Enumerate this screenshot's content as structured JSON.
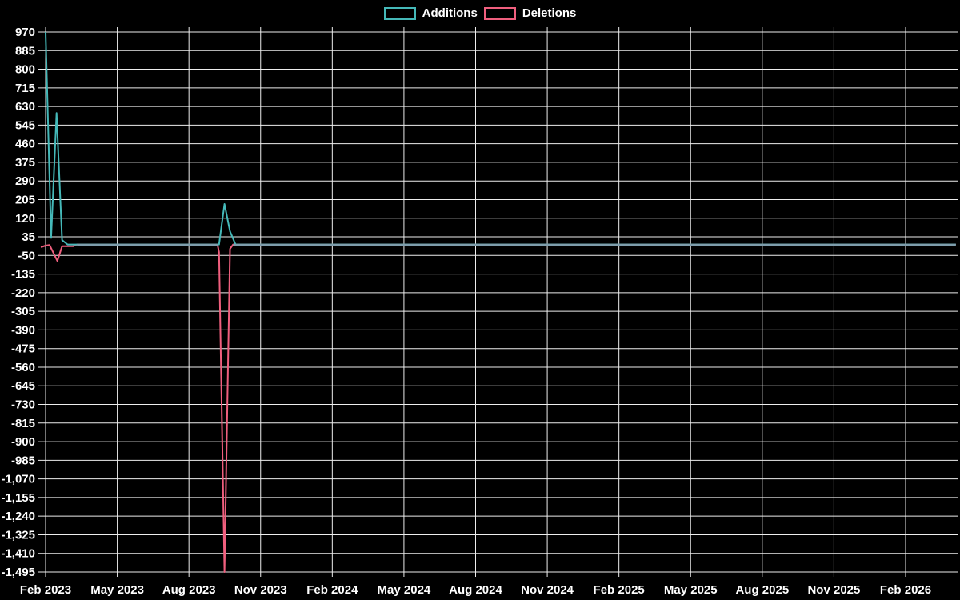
{
  "colors": {
    "background": "#000000",
    "text": "#ffffff",
    "grid": "#ededed",
    "additions": "#45b9b9",
    "deletions": "#f05f7e",
    "overlap_line": "#7e9dac"
  },
  "chart_data": {
    "type": "line",
    "title": "",
    "legend_position": "top-center",
    "grid": true,
    "x_axis": {
      "type": "time",
      "tick_labels": [
        "Feb 2023",
        "May 2023",
        "Aug 2023",
        "Nov 2023",
        "Feb 2024",
        "May 2024",
        "Aug 2024",
        "Nov 2024",
        "Feb 2025",
        "May 2025",
        "Aug 2025",
        "Nov 2025",
        "Feb 2026"
      ]
    },
    "y_axis": {
      "min": -1495,
      "max": 970,
      "step": 85,
      "ticks": [
        {
          "value": 970,
          "label": "970"
        },
        {
          "value": 885,
          "label": "885"
        },
        {
          "value": 800,
          "label": "800"
        },
        {
          "value": 715,
          "label": "715"
        },
        {
          "value": 630,
          "label": "630"
        },
        {
          "value": 545,
          "label": "545"
        },
        {
          "value": 460,
          "label": "460"
        },
        {
          "value": 375,
          "label": "375"
        },
        {
          "value": 290,
          "label": "290"
        },
        {
          "value": 205,
          "label": "205"
        },
        {
          "value": 120,
          "label": "120"
        },
        {
          "value": 35,
          "label": "35"
        },
        {
          "value": -50,
          "label": "-50"
        },
        {
          "value": -135,
          "label": "-135"
        },
        {
          "value": -220,
          "label": "-220"
        },
        {
          "value": -305,
          "label": "-305"
        },
        {
          "value": -390,
          "label": "-390"
        },
        {
          "value": -475,
          "label": "-475"
        },
        {
          "value": -560,
          "label": "-560"
        },
        {
          "value": -645,
          "label": "-645"
        },
        {
          "value": -730,
          "label": "-730"
        },
        {
          "value": -815,
          "label": "-815"
        },
        {
          "value": -900,
          "label": "-900"
        },
        {
          "value": -985,
          "label": "-985"
        },
        {
          "value": -1070,
          "label": "-1,070"
        },
        {
          "value": -1155,
          "label": "-1,155"
        },
        {
          "value": -1240,
          "label": "-1,240"
        },
        {
          "value": -1325,
          "label": "-1,325"
        },
        {
          "value": -1410,
          "label": "-1,410"
        },
        {
          "value": -1495,
          "label": "-1,495"
        }
      ]
    },
    "series": [
      {
        "name": "Additions",
        "color": "#45b9b9",
        "points": [
          [
            "2023-02-01",
            970
          ],
          [
            "2023-02-08",
            30
          ],
          [
            "2023-02-15",
            600
          ],
          [
            "2023-02-22",
            20
          ],
          [
            "2023-03-01",
            0
          ],
          [
            "2023-09-10",
            0
          ],
          [
            "2023-09-17",
            185
          ],
          [
            "2023-09-24",
            60
          ],
          [
            "2023-10-01",
            0
          ],
          [
            "2026-04-06",
            0
          ]
        ]
      },
      {
        "name": "Deletions",
        "color": "#f05f7e",
        "points": [
          [
            "2023-01-26",
            -12
          ],
          [
            "2023-02-01",
            -5
          ],
          [
            "2023-02-06",
            -2
          ],
          [
            "2023-02-16",
            -75
          ],
          [
            "2023-02-22",
            -8
          ],
          [
            "2023-03-08",
            -8
          ],
          [
            "2023-03-13",
            0
          ],
          [
            "2023-09-08",
            0
          ],
          [
            "2023-09-10",
            -35
          ],
          [
            "2023-09-17",
            -1495
          ],
          [
            "2023-09-24",
            -20
          ],
          [
            "2023-09-28",
            0
          ],
          [
            "2026-04-06",
            0
          ]
        ]
      }
    ],
    "overlap_zero_segments": [
      [
        "2023-03-13",
        "2023-09-08"
      ],
      [
        "2023-09-28",
        "2026-04-06"
      ]
    ]
  }
}
